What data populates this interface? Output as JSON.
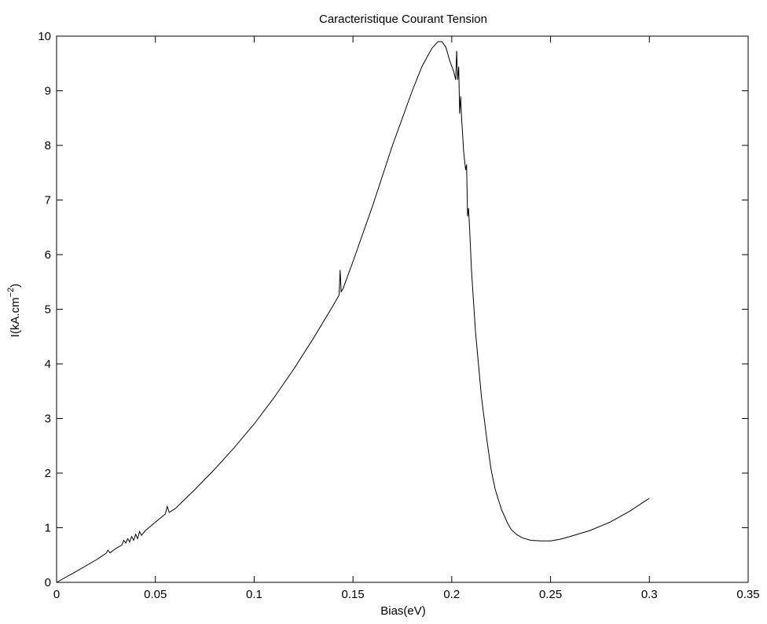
{
  "chart_data": {
    "type": "line",
    "title": "Caracteristique Courant Tension",
    "xlabel": "Bias(eV)",
    "ylabel_main": "I(kA.cm",
    "ylabel_sup": "−2",
    "ylabel_close": ")",
    "xlim": [
      0,
      0.35
    ],
    "ylim": [
      0,
      10
    ],
    "xticks": [
      0,
      0.05,
      0.1,
      0.15,
      0.2,
      0.25,
      0.3,
      0.35
    ],
    "xtick_labels": [
      "0",
      "0.05",
      "0.1",
      "0.15",
      "0.2",
      "0.25",
      "0.3",
      "0.35"
    ],
    "yticks": [
      0,
      1,
      2,
      3,
      4,
      5,
      6,
      7,
      8,
      9,
      10
    ],
    "ytick_labels": [
      "0",
      "1",
      "2",
      "3",
      "4",
      "5",
      "6",
      "7",
      "8",
      "9",
      "10"
    ],
    "grid": false,
    "line_color": "#000000",
    "series": [
      {
        "x": [
          0,
          0.01,
          0.02,
          0.025,
          0.026,
          0.027,
          0.03,
          0.033,
          0.034,
          0.035,
          0.036,
          0.037,
          0.038,
          0.039,
          0.04,
          0.041,
          0.042,
          0.043,
          0.045,
          0.05,
          0.055,
          0.056,
          0.057,
          0.06,
          0.07,
          0.08,
          0.09,
          0.1,
          0.11,
          0.12,
          0.13,
          0.14,
          0.143,
          0.1435,
          0.144,
          0.145,
          0.15,
          0.16,
          0.17,
          0.18,
          0.185,
          0.19,
          0.193,
          0.195,
          0.197,
          0.199,
          0.201,
          0.202,
          0.2025,
          0.203,
          0.2035,
          0.204,
          0.2045,
          0.205,
          0.2055,
          0.206,
          0.207,
          0.2075,
          0.208,
          0.2085,
          0.209,
          0.21,
          0.212,
          0.215,
          0.218,
          0.22,
          0.222,
          0.225,
          0.228,
          0.23,
          0.233,
          0.236,
          0.24,
          0.245,
          0.25,
          0.255,
          0.26,
          0.27,
          0.28,
          0.29,
          0.3
        ],
        "y": [
          0,
          0.2,
          0.41,
          0.53,
          0.59,
          0.54,
          0.62,
          0.68,
          0.77,
          0.72,
          0.8,
          0.74,
          0.84,
          0.77,
          0.88,
          0.8,
          0.93,
          0.86,
          0.95,
          1.1,
          1.25,
          1.39,
          1.28,
          1.35,
          1.7,
          2.07,
          2.47,
          2.9,
          3.38,
          3.9,
          4.47,
          5.07,
          5.26,
          5.72,
          5.32,
          5.38,
          5.87,
          6.9,
          8.0,
          9.0,
          9.45,
          9.78,
          9.9,
          9.9,
          9.8,
          9.55,
          9.35,
          9.2,
          9.73,
          9.2,
          9.44,
          8.58,
          8.9,
          8.5,
          8.2,
          7.9,
          7.55,
          7.65,
          6.7,
          6.85,
          6.5,
          5.7,
          4.6,
          3.4,
          2.55,
          2.05,
          1.7,
          1.35,
          1.1,
          0.97,
          0.87,
          0.81,
          0.77,
          0.76,
          0.76,
          0.79,
          0.84,
          0.95,
          1.1,
          1.3,
          1.54
        ]
      }
    ]
  }
}
